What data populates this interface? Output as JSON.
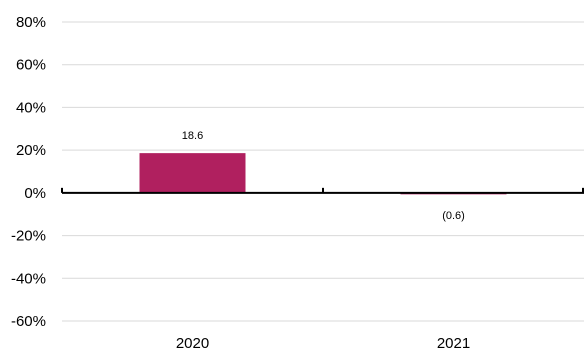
{
  "chart_data": {
    "type": "bar",
    "categories": [
      "2020",
      "2021"
    ],
    "series": [
      {
        "values": [
          18.6,
          -0.6
        ]
      }
    ],
    "data_labels": [
      "18.6",
      "(0.6)"
    ],
    "y_ticks": [
      "80%",
      "60%",
      "40%",
      "20%",
      "0%",
      "-20%",
      "-40%",
      "-60%"
    ],
    "y_tick_values": [
      80,
      60,
      40,
      20,
      0,
      -20,
      -40,
      -60
    ],
    "ylim": [
      -60,
      80
    ],
    "grid": true,
    "bar_color": "#b0205f",
    "grid_color": "#d9d9d9",
    "zero_line_color": "#000000"
  }
}
